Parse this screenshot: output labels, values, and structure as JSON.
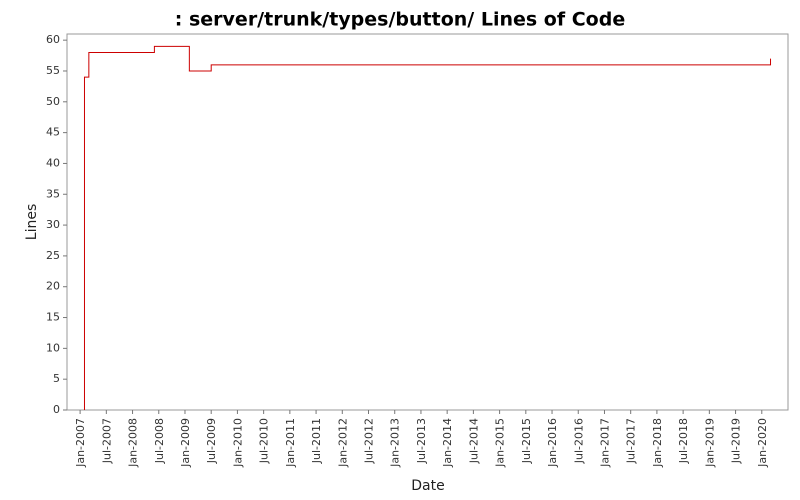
{
  "chart_data": {
    "type": "step",
    "title": ": server/trunk/types/button/ Lines of Code",
    "xlabel": "Date",
    "ylabel": "Lines",
    "series": [
      {
        "name": "Lines",
        "color": "#cc0000",
        "x": [
          "2007-02",
          "2007-02",
          "2007-03",
          "2007-03",
          "2008-06",
          "2009-02",
          "2009-07",
          "2020-03"
        ],
        "values": [
          0,
          54,
          57,
          58,
          59,
          55,
          56,
          57
        ]
      }
    ],
    "xlim": [
      "2006-10",
      "2020-07"
    ],
    "xticks": [
      {
        "value": "2007-01",
        "label": "Jan-2007"
      },
      {
        "value": "2007-07",
        "label": "Jul-2007"
      },
      {
        "value": "2008-01",
        "label": "Jan-2008"
      },
      {
        "value": "2008-07",
        "label": "Jul-2008"
      },
      {
        "value": "2009-01",
        "label": "Jan-2009"
      },
      {
        "value": "2009-07",
        "label": "Jul-2009"
      },
      {
        "value": "2010-01",
        "label": "Jan-2010"
      },
      {
        "value": "2010-07",
        "label": "Jul-2010"
      },
      {
        "value": "2011-01",
        "label": "Jan-2011"
      },
      {
        "value": "2011-07",
        "label": "Jul-2011"
      },
      {
        "value": "2012-01",
        "label": "Jan-2012"
      },
      {
        "value": "2012-07",
        "label": "Jul-2012"
      },
      {
        "value": "2013-01",
        "label": "Jan-2013"
      },
      {
        "value": "2013-07",
        "label": "Jul-2013"
      },
      {
        "value": "2014-01",
        "label": "Jan-2014"
      },
      {
        "value": "2014-07",
        "label": "Jul-2014"
      },
      {
        "value": "2015-01",
        "label": "Jan-2015"
      },
      {
        "value": "2015-07",
        "label": "Jul-2015"
      },
      {
        "value": "2016-01",
        "label": "Jan-2016"
      },
      {
        "value": "2016-07",
        "label": "Jul-2016"
      },
      {
        "value": "2017-01",
        "label": "Jan-2017"
      },
      {
        "value": "2017-07",
        "label": "Jul-2017"
      },
      {
        "value": "2018-01",
        "label": "Jan-2018"
      },
      {
        "value": "2018-07",
        "label": "Jul-2018"
      },
      {
        "value": "2019-01",
        "label": "Jan-2019"
      },
      {
        "value": "2019-07",
        "label": "Jul-2019"
      },
      {
        "value": "2020-01",
        "label": "Jan-2020"
      }
    ],
    "ylim": [
      0,
      61
    ],
    "yticks": [
      0,
      5,
      10,
      15,
      20,
      25,
      30,
      35,
      40,
      45,
      50,
      55,
      60
    ],
    "grid": false
  }
}
